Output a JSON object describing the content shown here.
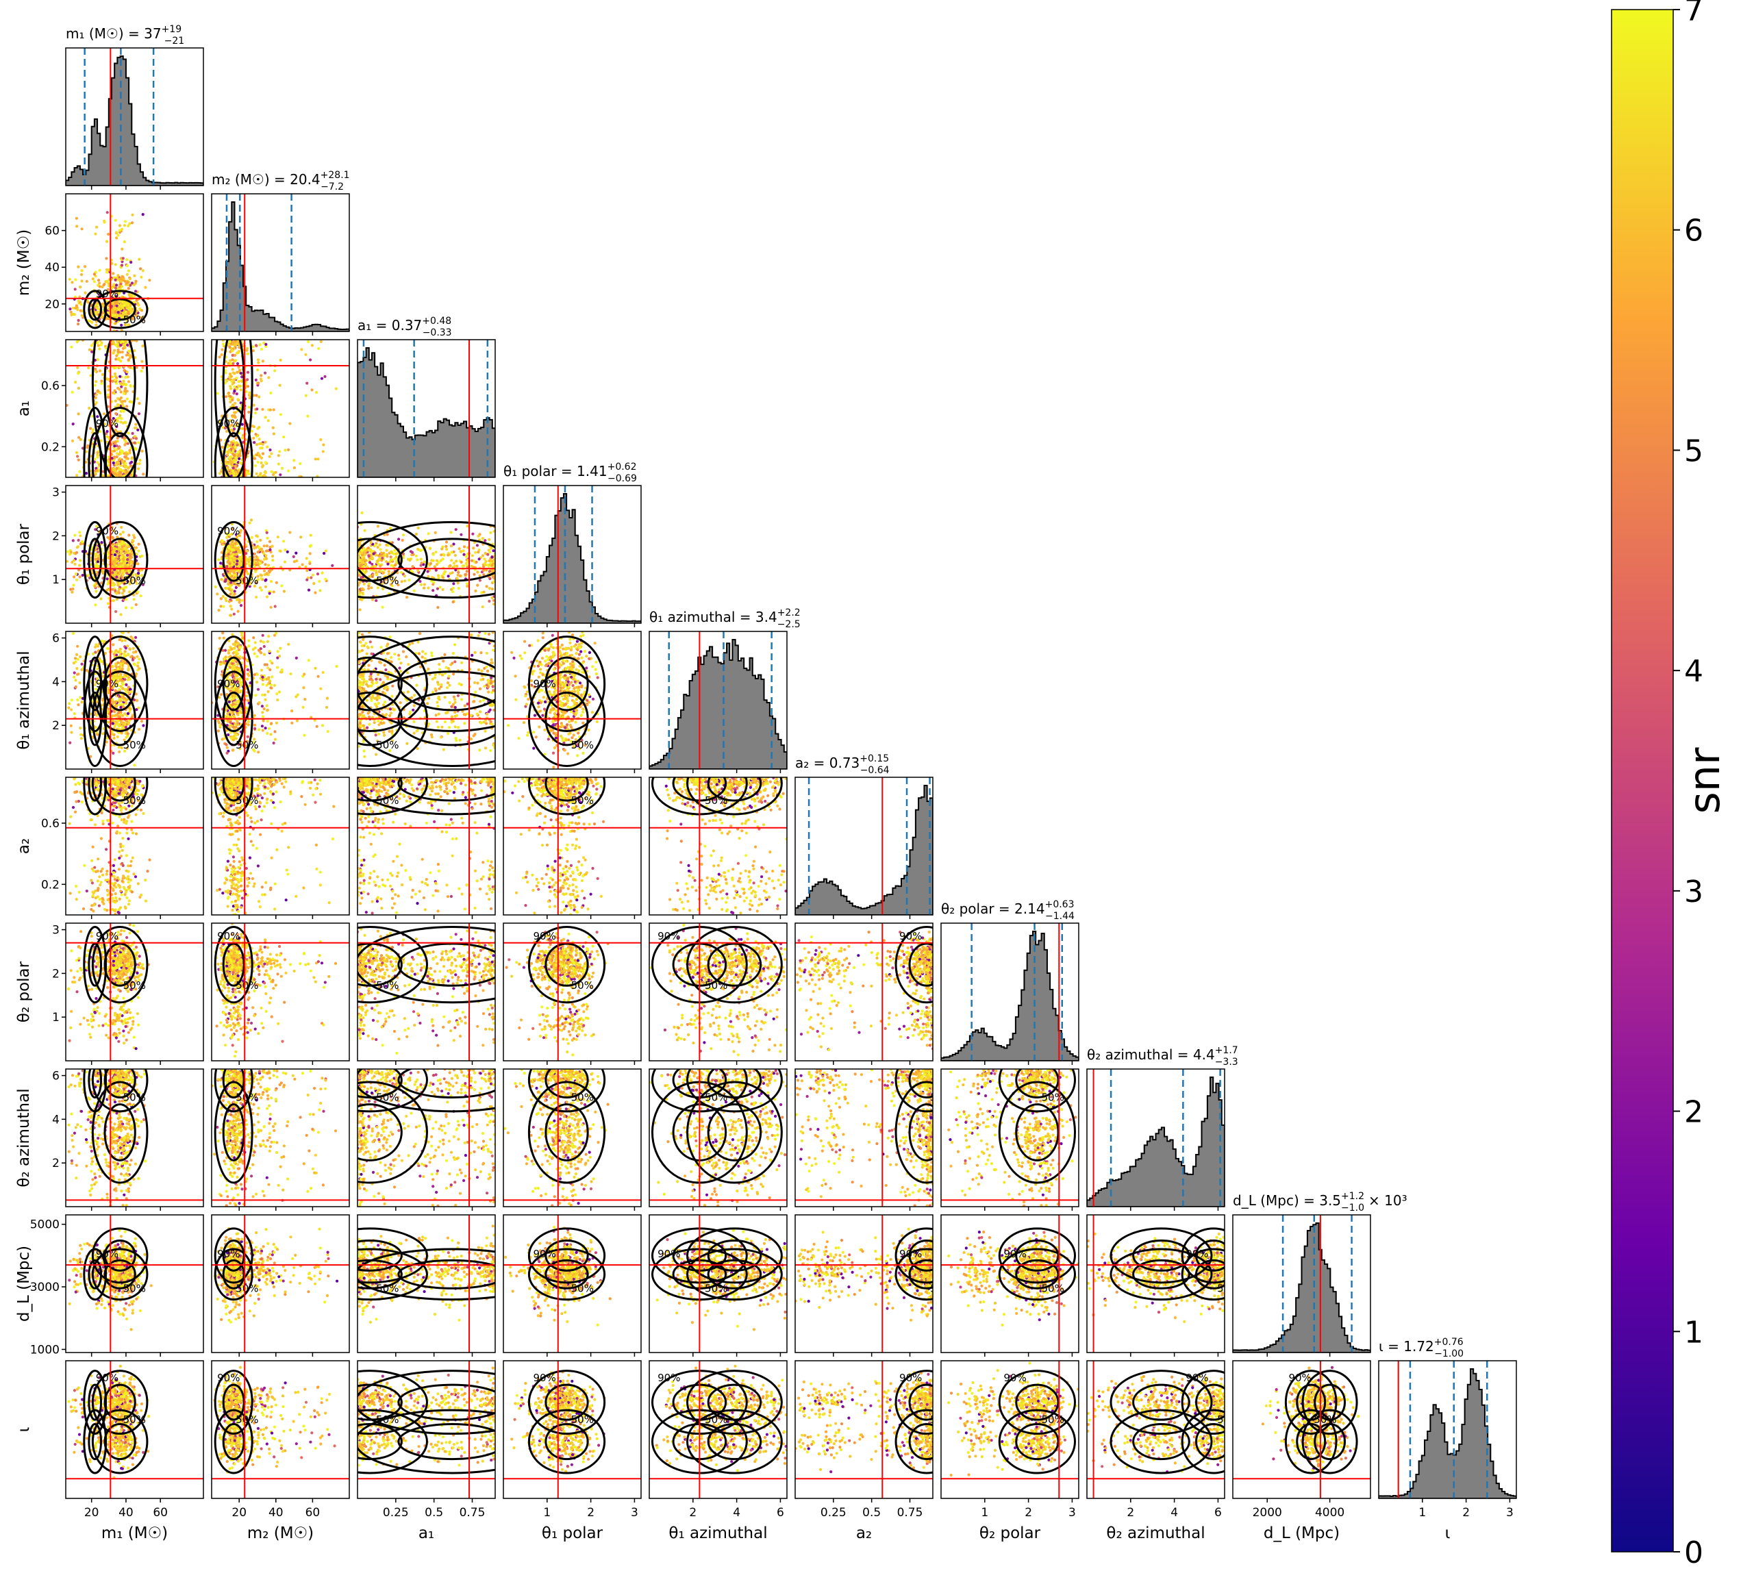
{
  "chart_data": {
    "type": "scatter",
    "subtype": "corner-plot",
    "parameters": [
      {
        "key": "m1",
        "label": "m₁ (M☉)",
        "title": "m₁ (M☉) = 37",
        "median": 37,
        "upper": "+19",
        "lower": "−21",
        "lim": [
          5,
          85
        ],
        "ticks": [
          20,
          40,
          60
        ],
        "ytick_labels": [],
        "truth": 31,
        "hist_peaks": [
          [
            36.5,
            5.5,
            1.0
          ],
          [
            22,
            2.2,
            0.45
          ],
          [
            12,
            3,
            0.12
          ]
        ]
      },
      {
        "key": "m2",
        "label": "m₂ (M☉)",
        "title": "m₂ (M☉) = 20.4",
        "median": 20.4,
        "upper": "+28.1",
        "lower": "−7.2",
        "lim": [
          5,
          80
        ],
        "ticks": [
          20,
          40,
          60
        ],
        "ytick_labels": [
          "20",
          "40",
          "60"
        ],
        "truth": 23,
        "hist_peaks": [
          [
            17,
            3.5,
            1.0
          ],
          [
            30,
            8,
            0.17
          ],
          [
            62,
            5,
            0.04
          ]
        ]
      },
      {
        "key": "a1",
        "label": "a₁",
        "title": "a₁ = 0.37",
        "median": 0.37,
        "upper": "+0.48",
        "lower": "−0.33",
        "lim": [
          0,
          0.9
        ],
        "ticks": [
          0.25,
          0.5,
          0.75
        ],
        "ytick_labels": [
          "0.2",
          "0.6"
        ],
        "truth": 0.73,
        "hist_peaks": [
          [
            0.08,
            0.13,
            1.0
          ],
          [
            0.62,
            0.22,
            0.45
          ],
          [
            0.87,
            0.04,
            0.25
          ]
        ]
      },
      {
        "key": "theta1_polar",
        "label": "θ₁ polar",
        "title": "θ₁ polar = 1.41",
        "median": 1.41,
        "upper": "+0.62",
        "lower": "−0.69",
        "lim": [
          0,
          3.15
        ],
        "ticks": [
          1,
          2,
          3
        ],
        "ytick_labels": [
          "1",
          "2",
          "3"
        ],
        "truth": 1.25,
        "hist_peaks": [
          [
            1.45,
            0.3,
            1.0
          ],
          [
            1.0,
            0.35,
            0.25
          ]
        ]
      },
      {
        "key": "theta1_azimuthal",
        "label": "θ₁ azimuthal",
        "title": "θ₁ azimuthal = 3.4",
        "median": 3.4,
        "upper": "+2.2",
        "lower": "−2.5",
        "lim": [
          0,
          6.3
        ],
        "ticks": [
          2,
          4,
          6
        ],
        "ytick_labels": [
          "2",
          "4",
          "6"
        ],
        "truth": 2.3,
        "hist_peaks": [
          [
            2.3,
            0.75,
            0.9
          ],
          [
            3.9,
            0.75,
            0.95
          ],
          [
            5.2,
            0.6,
            0.55
          ]
        ]
      },
      {
        "key": "a2",
        "label": "a₂",
        "title": "a₂ = 0.73",
        "median": 0.73,
        "upper": "+0.15",
        "lower": "−0.64",
        "lim": [
          0,
          0.9
        ],
        "ticks": [
          0.25,
          0.5,
          0.75
        ],
        "ytick_labels": [
          "0.2",
          "0.6"
        ],
        "truth": 0.57,
        "hist_peaks": [
          [
            0.86,
            0.07,
            1.0
          ],
          [
            0.2,
            0.1,
            0.28
          ],
          [
            0.7,
            0.12,
            0.2
          ]
        ]
      },
      {
        "key": "theta2_polar",
        "label": "θ₂ polar",
        "title": "θ₂ polar = 2.14",
        "median": 2.14,
        "upper": "+0.63",
        "lower": "−1.44",
        "lim": [
          0,
          3.15
        ],
        "ticks": [
          1,
          2,
          3
        ],
        "ytick_labels": [
          "1",
          "2",
          "3"
        ],
        "truth": 2.7,
        "hist_peaks": [
          [
            2.2,
            0.3,
            1.0
          ],
          [
            0.9,
            0.3,
            0.22
          ]
        ]
      },
      {
        "key": "theta2_azimuthal",
        "label": "θ₂ azimuthal",
        "title": "θ₂ azimuthal = 4.4",
        "median": 4.4,
        "upper": "+1.7",
        "lower": "−3.3",
        "lim": [
          0,
          6.3
        ],
        "ticks": [
          2,
          4,
          6
        ],
        "ytick_labels": [
          "2",
          "4",
          "6"
        ],
        "truth": 0.3,
        "hist_peaks": [
          [
            5.8,
            0.5,
            1.0
          ],
          [
            3.4,
            0.8,
            0.6
          ],
          [
            1.5,
            0.8,
            0.2
          ]
        ]
      },
      {
        "key": "dL",
        "label": "d_L (Mpc)",
        "title": "d_L (Mpc) = 3.5",
        "median": 3.5,
        "upper": "+1.2",
        "lower": "−1.0",
        "title_suffix": "× 10³",
        "lim": [
          900,
          5300
        ],
        "ticks": [
          2000,
          4000
        ],
        "ytick_labels": [
          "1000",
          "3000",
          "5000"
        ],
        "truth": 3700,
        "hist_peaks": [
          [
            3400,
            280,
            1.0
          ],
          [
            4000,
            300,
            0.5
          ],
          [
            2800,
            400,
            0.15
          ]
        ]
      },
      {
        "key": "iota",
        "label": "ι",
        "title": "ι = 1.72",
        "median": 1.72,
        "upper": "+0.76",
        "lower": "−1.00",
        "lim": [
          0,
          3.15
        ],
        "ticks": [
          1,
          2,
          3
        ],
        "ytick_labels": [],
        "truth": 0.45,
        "hist_peaks": [
          [
            2.2,
            0.25,
            1.0
          ],
          [
            1.3,
            0.25,
            0.7
          ]
        ]
      }
    ],
    "contour_labels": [
      "50%",
      "90%"
    ],
    "colorbar": {
      "label": "snr",
      "range": [
        0,
        7
      ],
      "ticks": [
        "0",
        "1",
        "2",
        "3",
        "4",
        "5",
        "6",
        "7"
      ],
      "colormap": "plasma",
      "colors": [
        "#0d0887",
        "#6a00a8",
        "#b12a90",
        "#e16462",
        "#fca636",
        "#f0f921"
      ]
    },
    "colors": {
      "hist_fill": "#808080",
      "truth": "#ff0000",
      "quantile": "#1f77b4",
      "contour": "#000000"
    }
  }
}
